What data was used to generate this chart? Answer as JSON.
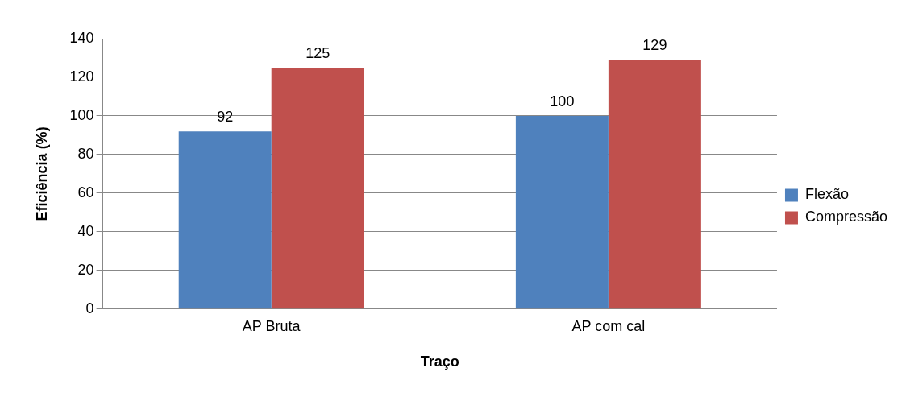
{
  "chart_data": {
    "type": "bar",
    "xlabel": "Traço",
    "ylabel": "Eficiência (%)",
    "categories": [
      "AP Bruta",
      "AP com cal"
    ],
    "series": [
      {
        "name": "Flexão",
        "color": "#4f81bd",
        "values": [
          92,
          100
        ]
      },
      {
        "name": "Compressão",
        "color": "#c0504d",
        "values": [
          125,
          129
        ]
      }
    ],
    "ylim": [
      0,
      140
    ],
    "yticks": [
      0,
      20,
      40,
      60,
      80,
      100,
      120,
      140
    ],
    "grid": "y",
    "legend": "right",
    "data_labels": true
  }
}
